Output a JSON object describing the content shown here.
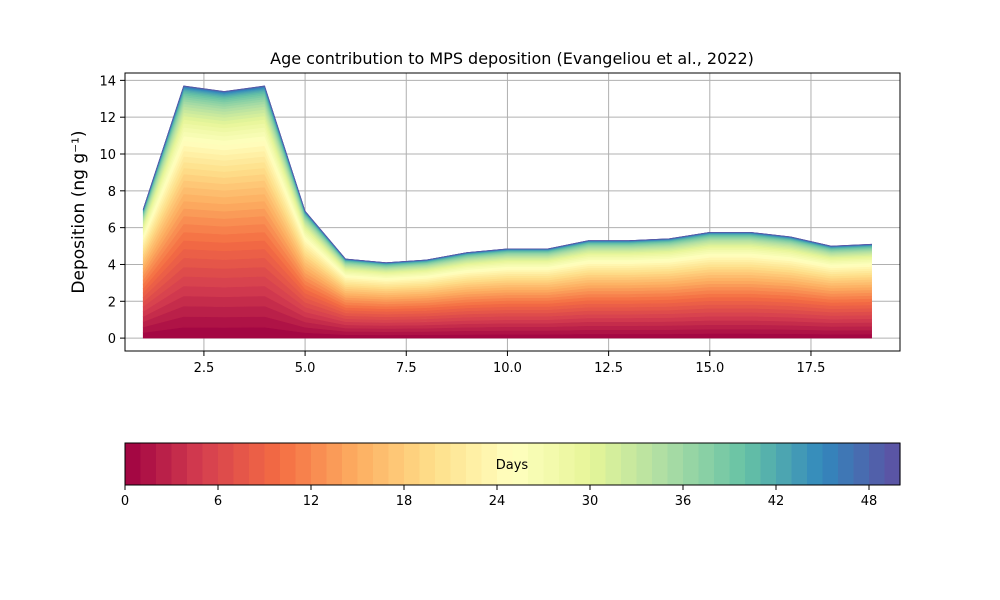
{
  "chart_data": {
    "type": "area",
    "subtype": "stacked",
    "title": "Age contribution to MPS deposition (Evangeliou et al., 2022)",
    "xlabel": "",
    "ylabel": "Deposition (ng g⁻¹)",
    "xlim": [
      0.55,
      19.7
    ],
    "ylim": [
      -0.7,
      14.4
    ],
    "x_ticks": [
      2.5,
      5.0,
      7.5,
      10.0,
      12.5,
      15.0,
      17.5
    ],
    "x_tick_labels": [
      "2.5",
      "5.0",
      "7.5",
      "10.0",
      "12.5",
      "15.0",
      "17.5"
    ],
    "y_ticks": [
      0,
      2,
      4,
      6,
      8,
      10,
      12,
      14
    ],
    "y_tick_labels": [
      "0",
      "2",
      "4",
      "6",
      "8",
      "10",
      "12",
      "14"
    ],
    "grid": true,
    "x": [
      1,
      2,
      3,
      4,
      5,
      6,
      7,
      8,
      9,
      10,
      11,
      12,
      13,
      14,
      15,
      16,
      17,
      18,
      19
    ],
    "total": [
      7.0,
      13.7,
      13.4,
      13.7,
      6.9,
      4.3,
      4.1,
      4.25,
      4.65,
      4.85,
      4.85,
      5.3,
      5.3,
      5.4,
      5.75,
      5.75,
      5.5,
      5.0,
      5.1
    ],
    "age_layers": 50,
    "colormap": "Spectral",
    "colorbar": {
      "label": "Days",
      "range": [
        0,
        50
      ],
      "ticks": [
        0,
        6,
        12,
        18,
        24,
        30,
        36,
        42,
        48
      ],
      "tick_labels": [
        "0",
        "6",
        "12",
        "18",
        "24",
        "30",
        "36",
        "42",
        "48"
      ],
      "colors": [
        "#9e0142",
        "#d53e4f",
        "#f46d43",
        "#fdae61",
        "#fee08b",
        "#ffffbf",
        "#e6f598",
        "#abdda4",
        "#66c2a5",
        "#3288bd",
        "#5e4fa2"
      ]
    }
  }
}
